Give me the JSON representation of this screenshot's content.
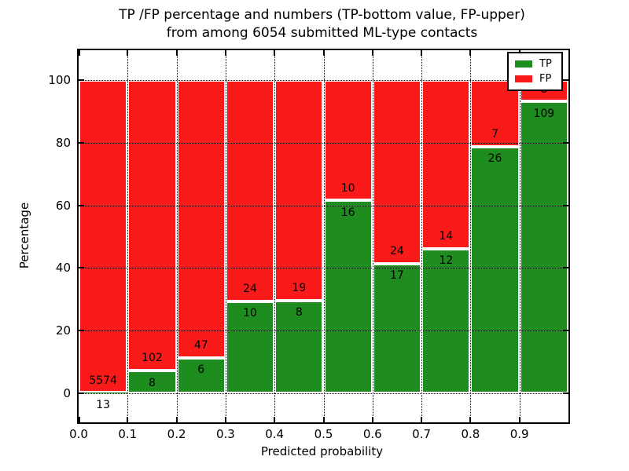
{
  "title": {
    "line1": "TP /FP percentage and numbers (TP-bottom value, FP-upper)",
    "line2": "from among 6054 submitted ML-type contacts"
  },
  "legend": {
    "position": "upper right",
    "items": [
      {
        "label": "TP",
        "color": "#1f8c1f"
      },
      {
        "label": "FP",
        "color": "#fb1a1a"
      }
    ]
  },
  "colors": {
    "tp": "#1f8c1f",
    "fp": "#fb1a1a",
    "grid": "#000000",
    "background": "#ffffff",
    "bar_edge": "#ffffff"
  },
  "chart_data": {
    "type": "bar",
    "stacked": true,
    "normalized": "percent_of_bin_total",
    "title": "TP /FP percentage and numbers (TP-bottom value, FP-upper) from among 6054 submitted ML-type contacts",
    "xlabel": "Predicted probability",
    "ylabel": "Percentage",
    "total_contacts": 6054,
    "bin_width": 0.1,
    "x_tick_labels": [
      "0.0",
      "0.1",
      "0.2",
      "0.3",
      "0.4",
      "0.5",
      "0.6",
      "0.7",
      "0.8",
      "0.9"
    ],
    "y_tick_values": [
      0,
      20,
      40,
      60,
      80,
      100
    ],
    "xlim": [
      0.0,
      1.0
    ],
    "ylim": [
      -9.3,
      109.6
    ],
    "grid": true,
    "legend_position": "upper right",
    "bins": [
      {
        "x_range": "0.0-0.1",
        "tp": 13,
        "fp": 5574
      },
      {
        "x_range": "0.1-0.2",
        "tp": 8,
        "fp": 102
      },
      {
        "x_range": "0.2-0.3",
        "tp": 6,
        "fp": 47
      },
      {
        "x_range": "0.3-0.4",
        "tp": 10,
        "fp": 24
      },
      {
        "x_range": "0.4-0.5",
        "tp": 8,
        "fp": 19
      },
      {
        "x_range": "0.5-0.6",
        "tp": 16,
        "fp": 10
      },
      {
        "x_range": "0.6-0.7",
        "tp": 17,
        "fp": 24
      },
      {
        "x_range": "0.7-0.8",
        "tp": 12,
        "fp": 14
      },
      {
        "x_range": "0.8-0.9",
        "tp": 26,
        "fp": 7
      },
      {
        "x_range": "0.9-1.0",
        "tp": 109,
        "fp": 8
      }
    ],
    "series": [
      {
        "name": "TP",
        "color": "#1f8c1f",
        "values": [
          13,
          8,
          6,
          10,
          8,
          16,
          17,
          12,
          26,
          109
        ]
      },
      {
        "name": "FP",
        "color": "#fb1a1a",
        "values": [
          5574,
          102,
          47,
          24,
          19,
          10,
          24,
          14,
          7,
          8
        ]
      }
    ]
  }
}
